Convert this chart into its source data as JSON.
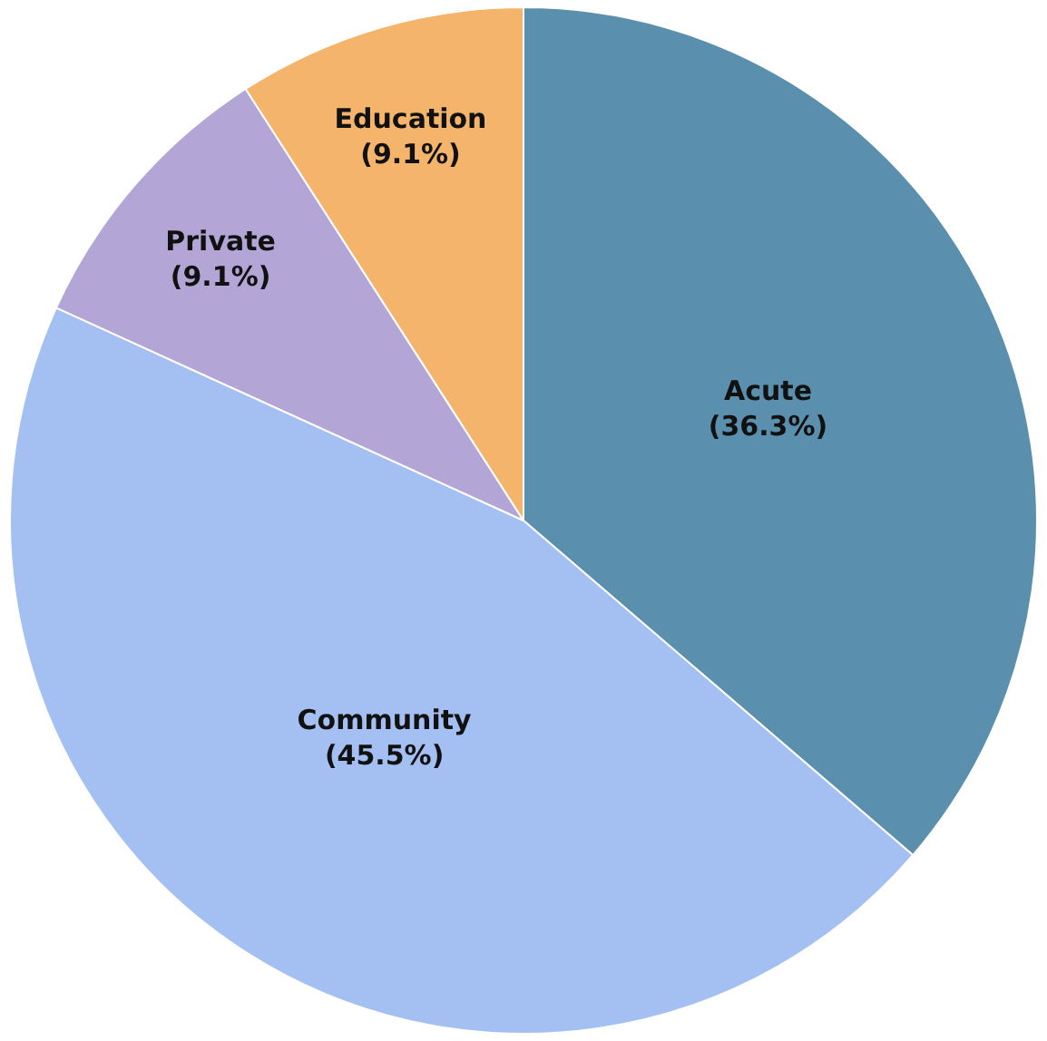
{
  "chart_data": {
    "type": "pie",
    "categories": [
      "Acute",
      "Community",
      "Private",
      "Education"
    ],
    "values": [
      36.3,
      45.5,
      9.1,
      9.1
    ],
    "colors": [
      "#5a90ad",
      "#a4c0f2",
      "#b3a6d6",
      "#f4b46b"
    ],
    "value_labels": [
      "(36.3%)",
      "(45.5%)",
      "(9.1%)",
      "(9.1%)"
    ],
    "legend": false
  }
}
